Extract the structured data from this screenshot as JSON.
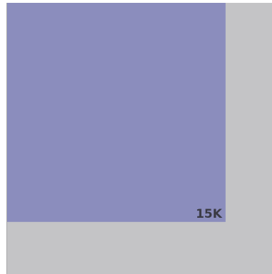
{
  "chart_data": {
    "type": "treemap",
    "title": "",
    "nodes": [
      {
        "label": "15K",
        "value": 15000,
        "color": "#8b8dbd",
        "label_color": "#3a3a44"
      }
    ],
    "total_value": 22500,
    "background_color": "#c4c4c6",
    "border_color": "#a8a8aa",
    "page_background": "#ffffff"
  }
}
